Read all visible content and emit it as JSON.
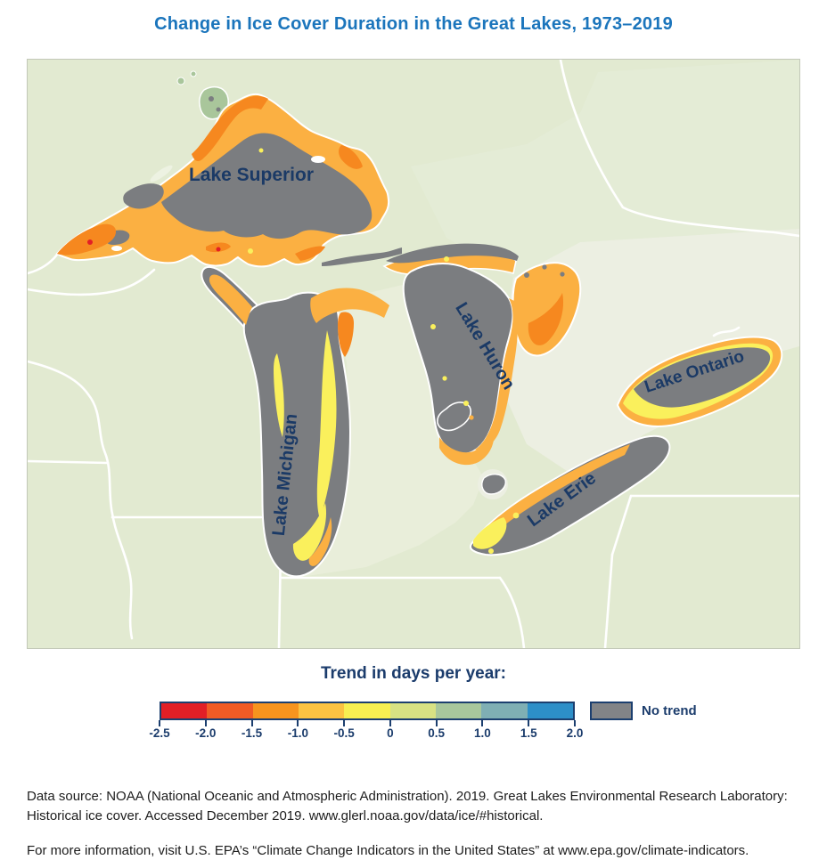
{
  "title": "Change in Ice Cover Duration in the Great Lakes, 1973–2019",
  "map": {
    "lakes": [
      "Lake Superior",
      "Lake Michigan",
      "Lake Huron",
      "Lake Erie",
      "Lake Ontario"
    ]
  },
  "legend": {
    "title": "Trend in days per year:",
    "ticks": [
      "-2.5",
      "-2.0",
      "-1.5",
      "-1.0",
      "-0.5",
      "0",
      "0.5",
      "1.0",
      "1.5",
      "2.0"
    ],
    "segments": [
      "#e21f26",
      "#f15b25",
      "#f7941e",
      "#fbc342",
      "#f7f051",
      "#d8e283",
      "#a8c79c",
      "#7fafb4",
      "#2d8fc8"
    ],
    "no_trend_label": "No trend",
    "no_trend_color": "#828487",
    "outline_color": "#1c3f6f"
  },
  "map_colors": {
    "land": "#e2ead1",
    "land_pale": "#ecefe2",
    "lake_no_trend_gray": "#7b7d80",
    "light_orange": "#fbb042",
    "dark_orange": "#f6881f",
    "yellow": "#faf05c",
    "green_positive": "#a9c69b",
    "border_lines": "#ffffff",
    "label_navy": "#1b3a66",
    "title_blue": "#1b75bc"
  },
  "chart_data": {
    "type": "heatmap",
    "title": "Change in Ice Cover Duration in the Great Lakes, 1973–2019",
    "legend_title": "Trend in days per year:",
    "units": "days per year",
    "scale_bin_edges": [
      -2.5,
      -2.0,
      -1.5,
      -1.0,
      -0.5,
      0,
      0.5,
      1.0,
      1.5,
      2.0
    ],
    "no_trend_category": "No trend",
    "regions": [
      {
        "name": "Lake Superior",
        "visible_pattern": "no-trend gray center; -0.5 to -1.5 days/yr (orange) nearshore band; strongest declines near western tip and north shore"
      },
      {
        "name": "Lake Michigan",
        "visible_pattern": "mostly no-trend gray; -0.5 to 0 days/yr (yellow) bands mid-lake; orange near Green Bay, straits and southern rim"
      },
      {
        "name": "Lake Huron",
        "visible_pattern": "no-trend gray main basin; -0.5 to -1.5 days/yr along eastern shore, North Channel and Georgian Bay"
      },
      {
        "name": "Lake Erie",
        "visible_pattern": "mostly no-trend gray; -0.5 to -1.0 days/yr along northwest shore; yellow patches at western end"
      },
      {
        "name": "Lake Ontario",
        "visible_pattern": "no-trend gray north half; -0.5 to 0 days/yr (yellow) along south and west shore; orange fringe at east end"
      }
    ]
  },
  "footer": {
    "data_source": "Data source: NOAA (National Oceanic and Atmospheric Administration). 2019. Great Lakes Environmental Research Laboratory: Historical ice cover. Accessed December 2019. www.glerl.noaa.gov/data/ice/#historical.",
    "more_info": "For more information, visit U.S. EPA’s “Climate Change Indicators in the United States” at www.epa.gov/climate-indicators."
  }
}
